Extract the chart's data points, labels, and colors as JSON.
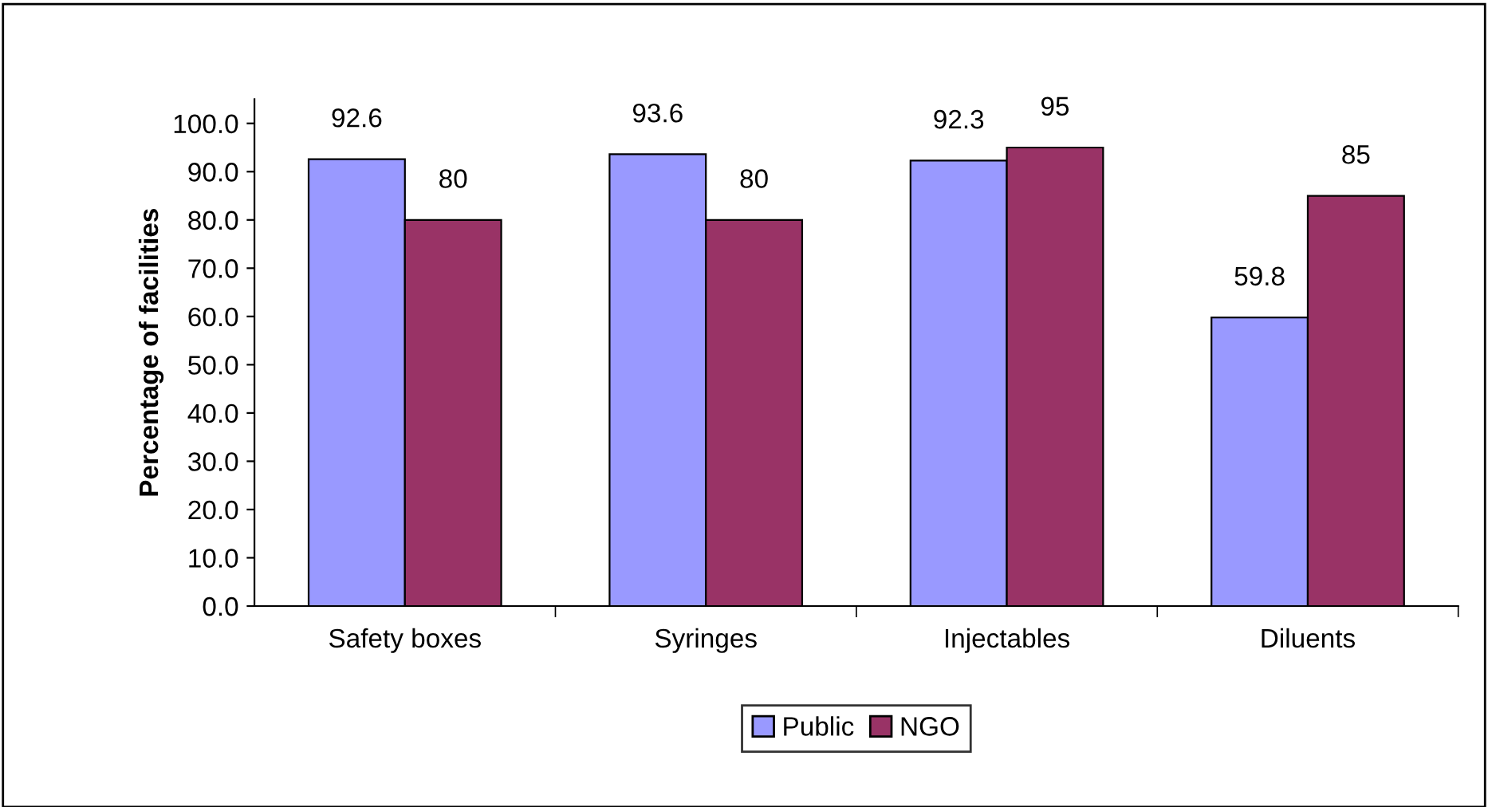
{
  "chart_data": {
    "type": "bar",
    "ylabel": "Percentage of facilities",
    "categories": [
      "Safety boxes",
      "Syringes",
      "Injectables",
      "Diluents"
    ],
    "series": [
      {
        "name": "Public",
        "color": "#9999ff",
        "values": [
          92.6,
          93.6,
          92.3,
          59.8
        ]
      },
      {
        "name": "NGO",
        "color": "#993366",
        "values": [
          80,
          80,
          95,
          85
        ]
      }
    ],
    "ylim": [
      0,
      105
    ],
    "yticks": [
      {
        "value": 0,
        "label": "0.0"
      },
      {
        "value": 10,
        "label": "10.0"
      },
      {
        "value": 20,
        "label": "20.0"
      },
      {
        "value": 30,
        "label": "30.0"
      },
      {
        "value": 40,
        "label": "40.0"
      },
      {
        "value": 50,
        "label": "50.0"
      },
      {
        "value": 60,
        "label": "60.0"
      },
      {
        "value": 70,
        "label": "70.0"
      },
      {
        "value": 80,
        "label": "80.0"
      },
      {
        "value": 90,
        "label": "90.0"
      },
      {
        "value": 100,
        "label": "100.0"
      }
    ],
    "data_labels": true,
    "grid": false,
    "legend": "bottom"
  }
}
